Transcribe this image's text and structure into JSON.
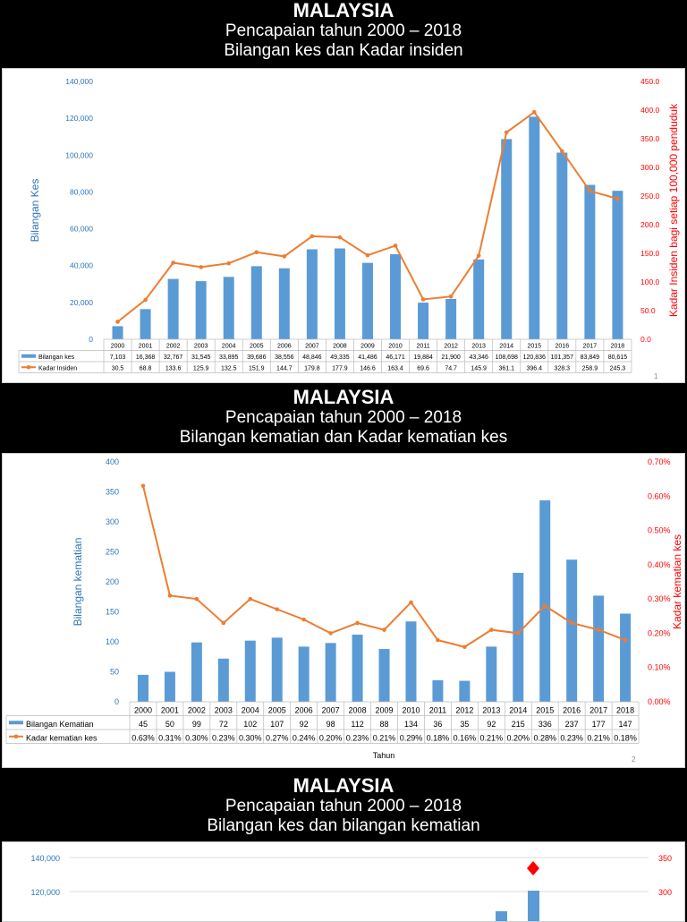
{
  "slides": [
    {
      "title": "MALAYSIA",
      "subtitle1": "Pencapaian tahun 2000 – 2018",
      "subtitle2": "Bilangan kes dan Kadar insiden",
      "page": "1"
    },
    {
      "title": "MALAYSIA",
      "subtitle1": "Pencapaian tahun 2000 – 2018",
      "subtitle2": "Bilangan kematian dan Kadar kematian kes",
      "page": "2"
    },
    {
      "title": "MALAYSIA",
      "subtitle1": "Pencapaian tahun 2000 – 2018",
      "subtitle2": "Bilangan kes dan bilangan kematian"
    }
  ],
  "colors": {
    "bar": "#5b9bd5",
    "line": "#ed7d31",
    "axis_left": "#2e75b6",
    "axis_right": "#ff0000"
  },
  "chart_data": [
    {
      "type": "bar+line",
      "title": "Bilangan kes dan Kadar insiden",
      "categories": [
        "2000",
        "2001",
        "2002",
        "2003",
        "2004",
        "2005",
        "2006",
        "2007",
        "2008",
        "2009",
        "2010",
        "2011",
        "2012",
        "2013",
        "2014",
        "2015",
        "2016",
        "2017",
        "2018"
      ],
      "ylabel": "Bilangan Kes",
      "y2label": "Kadar Insiden bagi setiap 100,000 penduduk",
      "ylim": [
        0,
        140000
      ],
      "yticks": [
        "0",
        "20,000",
        "40,000",
        "60,000",
        "80,000",
        "100,000",
        "120,000",
        "140,000"
      ],
      "y2lim": [
        0,
        450
      ],
      "y2ticks": [
        "0.0",
        "50.0",
        "100.0",
        "150.0",
        "200.0",
        "250.0",
        "300.0",
        "350.0",
        "400.0",
        "450.0"
      ],
      "series": [
        {
          "name": "Bilangan kes",
          "kind": "bar",
          "values": [
            7103,
            16368,
            32767,
            31545,
            33895,
            39686,
            38556,
            48846,
            49335,
            41486,
            46171,
            19884,
            21900,
            43346,
            108698,
            120836,
            101357,
            83849,
            80615
          ],
          "labels": [
            "7,103",
            "16,368",
            "32,767",
            "31,545",
            "33,895",
            "39,686",
            "38,556",
            "48,846",
            "49,335",
            "41,486",
            "46,171",
            "19,884",
            "21,900",
            "43,346",
            "108,698",
            "120,836",
            "101,357",
            "83,849",
            "80,615"
          ]
        },
        {
          "name": "Kadar Insiden",
          "kind": "line",
          "axis": "right",
          "values": [
            30.5,
            68.8,
            133.6,
            125.9,
            132.5,
            151.9,
            144.7,
            179.8,
            177.9,
            146.6,
            163.4,
            69.6,
            74.7,
            145.9,
            361.1,
            396.4,
            328.3,
            258.9,
            245.3
          ],
          "labels": [
            "30.5",
            "68.8",
            "133.6",
            "125.9",
            "132.5",
            "151.9",
            "144.7",
            "179.8",
            "177.9",
            "146.6",
            "163.4",
            "69.6",
            "74.7",
            "145.9",
            "361.1",
            "396.4",
            "328.3",
            "258.9",
            "245.3"
          ]
        }
      ]
    },
    {
      "type": "bar+line",
      "title": "Bilangan kematian dan Kadar kematian kes",
      "categories": [
        "2000",
        "2001",
        "2002",
        "2003",
        "2004",
        "2005",
        "2006",
        "2007",
        "2008",
        "2009",
        "2010",
        "2011",
        "2012",
        "2013",
        "2014",
        "2015",
        "2016",
        "2017",
        "2018"
      ],
      "xlabel": "Tahun",
      "ylabel": "Bilangan kematian",
      "y2label": "Kadar kematian kes",
      "ylim": [
        0,
        400
      ],
      "yticks": [
        "0",
        "50",
        "100",
        "150",
        "200",
        "250",
        "300",
        "350",
        "400"
      ],
      "y2lim": [
        0,
        0.7
      ],
      "y2ticks": [
        "0.00%",
        "0.10%",
        "0.20%",
        "0.30%",
        "0.40%",
        "0.50%",
        "0.60%",
        "0.70%"
      ],
      "series": [
        {
          "name": "Bilangan Kematian",
          "kind": "bar",
          "values": [
            45,
            50,
            99,
            72,
            102,
            107,
            92,
            98,
            112,
            88,
            134,
            36,
            35,
            92,
            215,
            336,
            237,
            177,
            147
          ],
          "labels": [
            "45",
            "50",
            "99",
            "72",
            "102",
            "107",
            "92",
            "98",
            "112",
            "88",
            "134",
            "36",
            "35",
            "92",
            "215",
            "336",
            "237",
            "177",
            "147"
          ]
        },
        {
          "name": "Kadar kematian kes",
          "kind": "line",
          "axis": "right",
          "values": [
            0.63,
            0.31,
            0.3,
            0.23,
            0.3,
            0.27,
            0.24,
            0.2,
            0.23,
            0.21,
            0.29,
            0.18,
            0.16,
            0.21,
            0.2,
            0.28,
            0.23,
            0.21,
            0.18
          ],
          "labels": [
            "0.63%",
            "0.31%",
            "0.30%",
            "0.23%",
            "0.30%",
            "0.27%",
            "0.24%",
            "0.20%",
            "0.23%",
            "0.21%",
            "0.29%",
            "0.18%",
            "0.16%",
            "0.21%",
            "0.20%",
            "0.28%",
            "0.23%",
            "0.21%",
            "0.18%"
          ]
        }
      ]
    },
    {
      "type": "bar+scatter",
      "title": "Bilangan kes dan bilangan kematian",
      "yticks_visible": [
        "140,000",
        "120,000"
      ],
      "y2ticks_visible": [
        "350",
        "300"
      ],
      "partial_bars": [
        {
          "category": "2014",
          "value": 108698
        },
        {
          "category": "2015",
          "value": 120836
        }
      ],
      "partial_points": [
        {
          "category": "2015",
          "value": 336
        }
      ]
    }
  ]
}
